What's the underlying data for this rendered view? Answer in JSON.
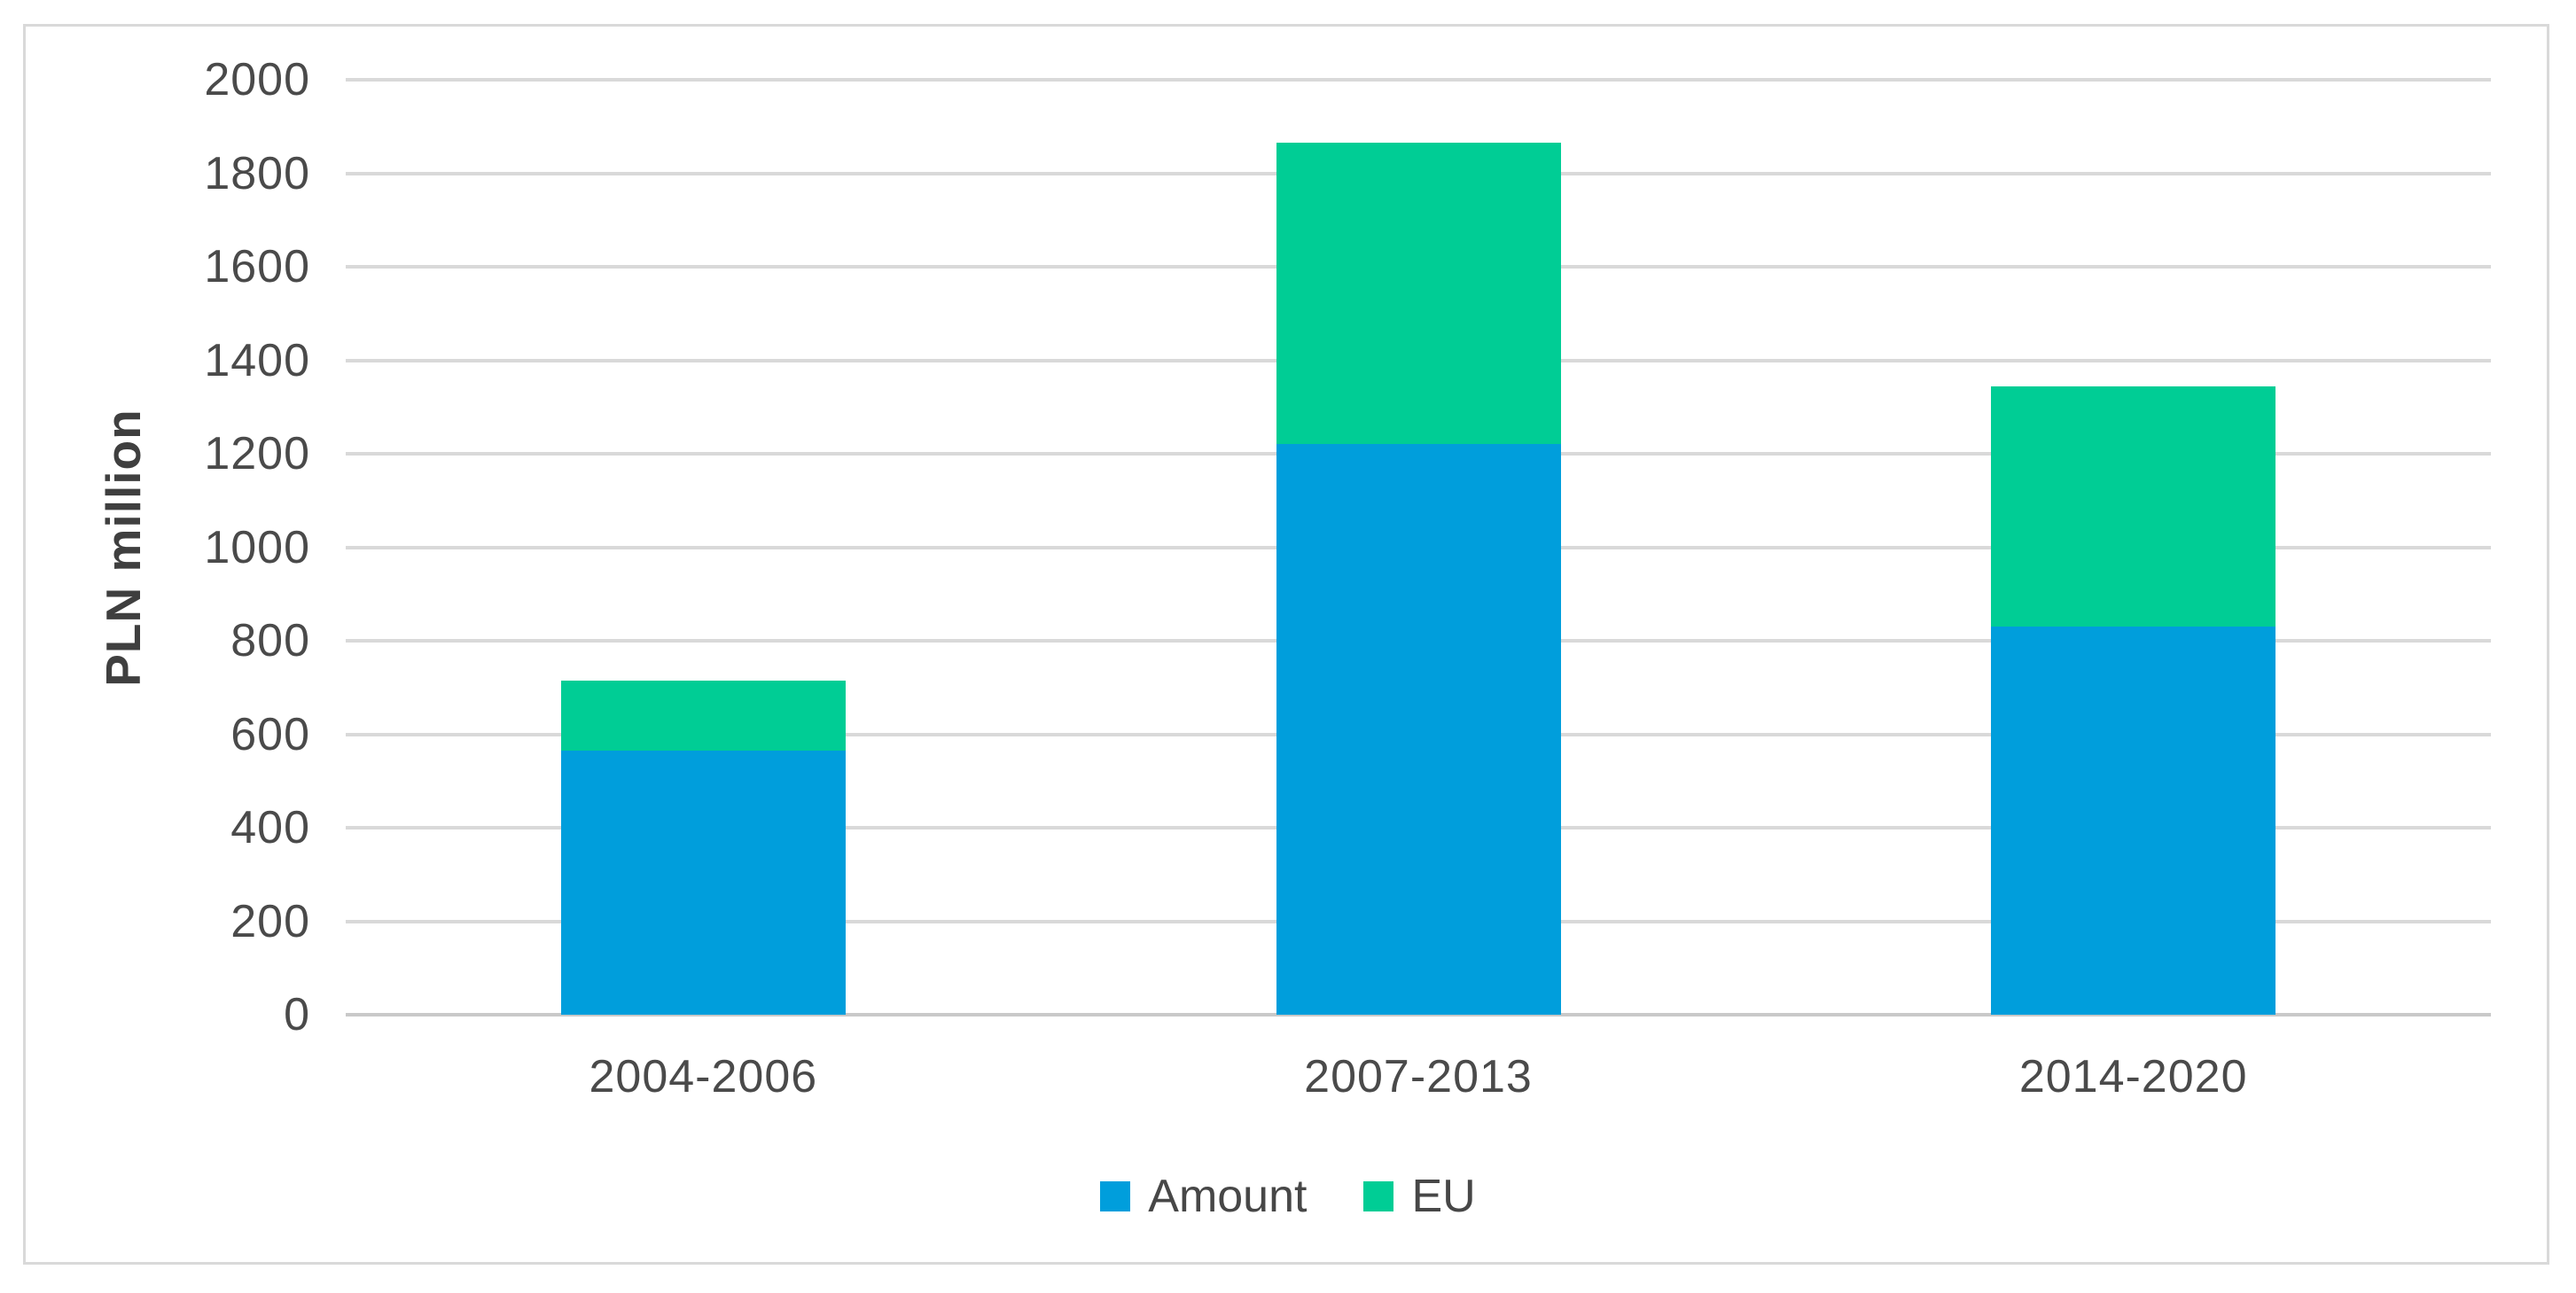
{
  "chart_data": {
    "type": "bar",
    "stacked": true,
    "title": "",
    "categories": [
      "2004-2006",
      "2007-2013",
      "2014-2020"
    ],
    "series": [
      {
        "name": "Amount",
        "color": "#009EDC",
        "values": [
          565,
          1220,
          830
        ]
      },
      {
        "name": "EU",
        "color": "#00CD95",
        "values": [
          150,
          645,
          515
        ]
      }
    ],
    "totals": [
      715,
      1865,
      1345
    ],
    "xlabel": "",
    "ylabel": "PLN million",
    "ylim": [
      0,
      2000
    ],
    "ytick_step": 200,
    "ytick_labels": [
      "0",
      "200",
      "400",
      "600",
      "800",
      "1000",
      "1200",
      "1400",
      "1600",
      "1800",
      "2000"
    ],
    "grid": "horizontal",
    "legend_position": "bottom-center"
  },
  "colors": {
    "background": "#FFFFFF",
    "frame_border": "#D9D9D9",
    "gridline": "#D9D9D9",
    "axis_line": "#C9C9C9",
    "axis_text": "#4A4A4A"
  }
}
